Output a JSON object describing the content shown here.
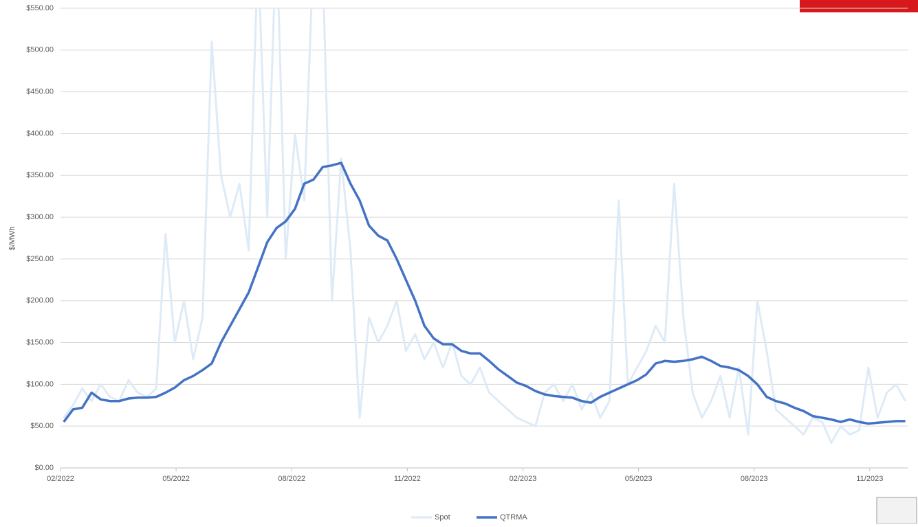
{
  "chart_data": {
    "type": "line",
    "y_label": "$/MWh",
    "x": [
      2022.09,
      2022.11,
      2022.13,
      2022.15,
      2022.17,
      2022.19,
      2022.21,
      2022.23,
      2022.25,
      2022.27,
      2022.29,
      2022.31,
      2022.33,
      2022.35,
      2022.37,
      2022.39,
      2022.41,
      2022.43,
      2022.45,
      2022.47,
      2022.49,
      2022.51,
      2022.53,
      2022.55,
      2022.57,
      2022.59,
      2022.61,
      2022.63,
      2022.65,
      2022.67,
      2022.69,
      2022.71,
      2022.73,
      2022.75,
      2022.77,
      2022.79,
      2022.81,
      2022.83,
      2022.85,
      2022.87,
      2022.89,
      2022.91,
      2022.93,
      2022.95,
      2022.97,
      2022.99,
      2023.01,
      2023.03,
      2023.05,
      2023.07,
      2023.09,
      2023.11,
      2023.13,
      2023.15,
      2023.17,
      2023.19,
      2023.21,
      2023.23,
      2023.25,
      2023.27,
      2023.29,
      2023.31,
      2023.33,
      2023.35,
      2023.37,
      2023.39,
      2023.41,
      2023.43,
      2023.45,
      2023.47,
      2023.49,
      2023.51,
      2023.53,
      2023.55,
      2023.57,
      2023.59,
      2023.61,
      2023.63,
      2023.65,
      2023.67,
      2023.69,
      2023.71,
      2023.73,
      2023.75,
      2023.77,
      2023.79,
      2023.81,
      2023.83,
      2023.85,
      2023.87,
      2023.89,
      2023.91
    ],
    "series": [
      {
        "name": "Spot",
        "color": "#deebf7",
        "width": 3,
        "values": [
          60,
          75,
          95,
          80,
          100,
          85,
          80,
          105,
          90,
          85,
          95,
          280,
          150,
          200,
          130,
          180,
          510,
          350,
          300,
          340,
          260,
          620,
          300,
          640,
          250,
          400,
          320,
          620,
          600,
          200,
          370,
          260,
          60,
          180,
          150,
          170,
          200,
          140,
          160,
          130,
          150,
          120,
          150,
          110,
          100,
          120,
          90,
          80,
          70,
          60,
          55,
          50,
          90,
          100,
          80,
          100,
          70,
          90,
          60,
          80,
          320,
          100,
          120,
          140,
          170,
          150,
          340,
          180,
          90,
          60,
          80,
          110,
          60,
          120,
          40,
          200,
          140,
          70,
          60,
          50,
          40,
          60,
          55,
          30,
          50,
          40,
          45,
          120,
          60,
          90,
          100,
          80
        ]
      },
      {
        "name": "QTRMA",
        "color": "#4472c4",
        "width": 3.5,
        "values": [
          55,
          70,
          72,
          90,
          82,
          80,
          80,
          83,
          84,
          84,
          85,
          90,
          96,
          105,
          110,
          117,
          125,
          150,
          170,
          190,
          210,
          240,
          270,
          287,
          295,
          310,
          340,
          345,
          360,
          362,
          365,
          340,
          320,
          290,
          278,
          272,
          250,
          225,
          200,
          170,
          155,
          148,
          148,
          140,
          137,
          137,
          128,
          118,
          110,
          102,
          98,
          92,
          88,
          86,
          85,
          84,
          80,
          78,
          85,
          90,
          95,
          100,
          105,
          112,
          125,
          128,
          127,
          128,
          130,
          133,
          128,
          122,
          120,
          117,
          110,
          100,
          85,
          80,
          77,
          72,
          68,
          62,
          60,
          58,
          55,
          58,
          55,
          53,
          54,
          55,
          56,
          56
        ]
      }
    ],
    "xlim": [
      2022.083,
      2023.915
    ],
    "xticks": [
      {
        "value": 2022.083,
        "label": "02/2022"
      },
      {
        "value": 2022.333,
        "label": "05/2022"
      },
      {
        "value": 2022.583,
        "label": "08/2022"
      },
      {
        "value": 2022.833,
        "label": "11/2022"
      },
      {
        "value": 2023.083,
        "label": "02/2023"
      },
      {
        "value": 2023.333,
        "label": "05/2023"
      },
      {
        "value": 2023.583,
        "label": "08/2023"
      },
      {
        "value": 2023.833,
        "label": "11/2023"
      }
    ],
    "ylim": [
      0,
      550
    ],
    "yticks": [
      {
        "value": 0,
        "label": "$0.00"
      },
      {
        "value": 50,
        "label": "$50.00"
      },
      {
        "value": 100,
        "label": "$100.00"
      },
      {
        "value": 150,
        "label": "$150.00"
      },
      {
        "value": 200,
        "label": "$200.00"
      },
      {
        "value": 250,
        "label": "$250.00"
      },
      {
        "value": 300,
        "label": "$300.00"
      },
      {
        "value": 350,
        "label": "$350.00"
      },
      {
        "value": 400,
        "label": "$400.00"
      },
      {
        "value": 450,
        "label": "$450.00"
      },
      {
        "value": 500,
        "label": "$500.00"
      },
      {
        "value": 550,
        "label": "$550.00"
      }
    ],
    "grid": true,
    "legend": "bottom"
  }
}
